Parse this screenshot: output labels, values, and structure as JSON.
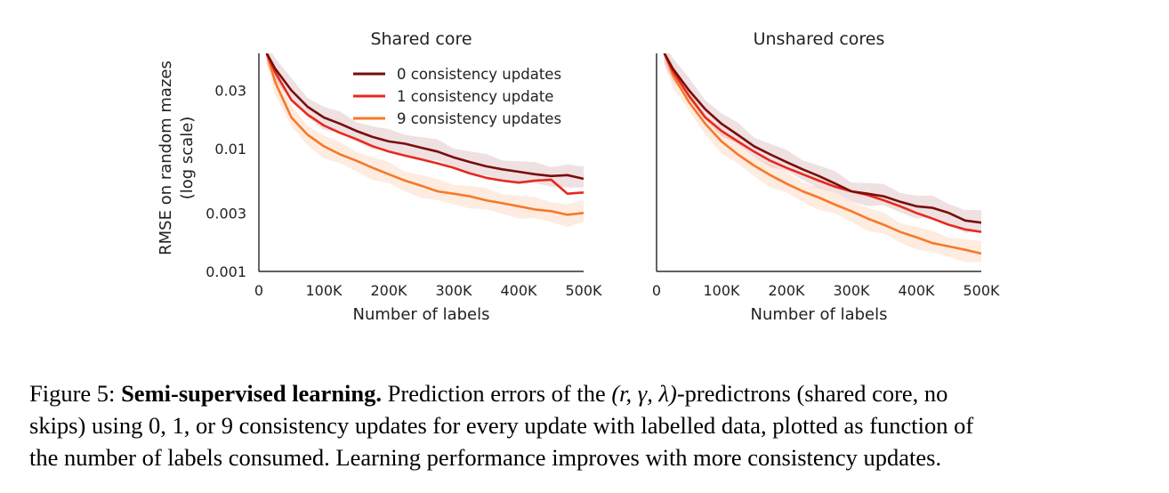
{
  "chart_data": [
    {
      "type": "line",
      "title": "Shared core",
      "xlabel": "Number of labels",
      "ylabel": "RMSE on random mazes\n(log scale)",
      "yscale": "log",
      "xlim": [
        0,
        500000
      ],
      "ylim": [
        0.001,
        0.06
      ],
      "xticks": [
        0,
        100000,
        200000,
        300000,
        400000,
        500000
      ],
      "xticklabels": [
        "0",
        "100K",
        "200K",
        "300K",
        "400K",
        "500K"
      ],
      "yticks": [
        0.001,
        0.003,
        0.01,
        0.03
      ],
      "yticklabels": [
        "0.001",
        "0.003",
        "0.01",
        "0.03"
      ],
      "legend_position": "top-right",
      "x": [
        12000,
        25000,
        50000,
        75000,
        100000,
        125000,
        150000,
        175000,
        200000,
        225000,
        250000,
        275000,
        300000,
        325000,
        350000,
        375000,
        400000,
        425000,
        450000,
        475000,
        500000
      ],
      "series": [
        {
          "name": "0 consistency updates",
          "color": "#7a0c0c",
          "band": true,
          "values": [
            0.06,
            0.045,
            0.03,
            0.022,
            0.018,
            0.016,
            0.014,
            0.0125,
            0.0115,
            0.011,
            0.0102,
            0.0095,
            0.0085,
            0.0078,
            0.0072,
            0.0068,
            0.0065,
            0.0062,
            0.006,
            0.0061,
            0.0057
          ]
        },
        {
          "name": "1 consistency update",
          "color": "#e8281e",
          "band": false,
          "values": [
            0.06,
            0.042,
            0.025,
            0.019,
            0.0155,
            0.0135,
            0.012,
            0.0105,
            0.0095,
            0.0088,
            0.0082,
            0.0076,
            0.007,
            0.0063,
            0.0058,
            0.0055,
            0.0053,
            0.0055,
            0.0056,
            0.0043,
            0.0044
          ]
        },
        {
          "name": "9 consistency updates",
          "color": "#f6792a",
          "band": true,
          "values": [
            0.06,
            0.035,
            0.018,
            0.013,
            0.0105,
            0.009,
            0.008,
            0.007,
            0.0062,
            0.0055,
            0.005,
            0.0045,
            0.0043,
            0.0041,
            0.0038,
            0.0036,
            0.0034,
            0.0032,
            0.0031,
            0.0029,
            0.003
          ]
        }
      ]
    },
    {
      "type": "line",
      "title": "Unshared cores",
      "xlabel": "Number of labels",
      "ylabel": "",
      "yscale": "log",
      "xlim": [
        0,
        500000
      ],
      "ylim": [
        0.001,
        0.06
      ],
      "xticks": [
        0,
        100000,
        200000,
        300000,
        400000,
        500000
      ],
      "xticklabels": [
        "0",
        "100K",
        "200K",
        "300K",
        "400K",
        "500K"
      ],
      "yticks": [],
      "yticklabels": [],
      "x": [
        12000,
        25000,
        50000,
        75000,
        100000,
        125000,
        150000,
        175000,
        200000,
        225000,
        250000,
        275000,
        300000,
        325000,
        350000,
        375000,
        400000,
        425000,
        450000,
        475000,
        500000
      ],
      "series": [
        {
          "name": "0 consistency updates",
          "color": "#7a0c0c",
          "band": true,
          "values": [
            0.06,
            0.045,
            0.03,
            0.021,
            0.016,
            0.013,
            0.0105,
            0.009,
            0.0078,
            0.0068,
            0.006,
            0.0052,
            0.0045,
            0.0043,
            0.0041,
            0.0037,
            0.0034,
            0.0033,
            0.003,
            0.0026,
            0.0025
          ]
        },
        {
          "name": "1 consistency update",
          "color": "#e8281e",
          "band": false,
          "values": [
            0.06,
            0.043,
            0.027,
            0.018,
            0.014,
            0.0115,
            0.0095,
            0.008,
            0.007,
            0.0062,
            0.0055,
            0.0049,
            0.0045,
            0.0042,
            0.0038,
            0.0034,
            0.003,
            0.0027,
            0.0024,
            0.0022,
            0.0021
          ]
        },
        {
          "name": "9 consistency updates",
          "color": "#f6792a",
          "band": true,
          "values": [
            0.06,
            0.04,
            0.024,
            0.016,
            0.0115,
            0.009,
            0.0073,
            0.0061,
            0.0052,
            0.0045,
            0.004,
            0.0035,
            0.0031,
            0.0027,
            0.0024,
            0.0021,
            0.0019,
            0.0017,
            0.0016,
            0.0015,
            0.0014
          ]
        }
      ]
    }
  ],
  "caption": {
    "prefix": "Figure 5:",
    "bold": "Semi-supervised learning.",
    "text1": "Prediction errors of the",
    "math": "(r, γ, λ)",
    "text2": "-predictrons (shared core, no",
    "line2": "skips) using 0, 1, or 9 consistency updates for every update with labelled data, plotted as function of",
    "line3": "the number of labels consumed. Learning performance improves with more consistency updates."
  }
}
